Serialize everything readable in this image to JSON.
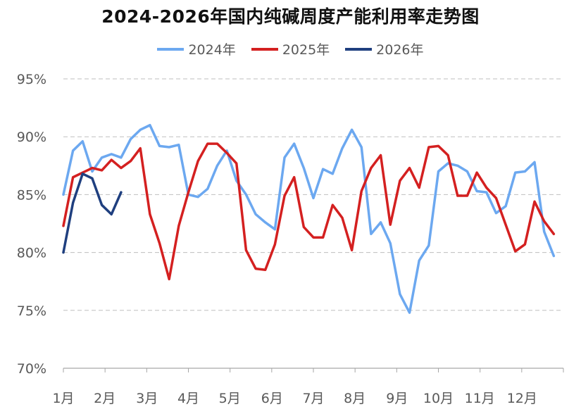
{
  "chart_data": {
    "type": "line",
    "title": "2024-2026年国内纯碱周度产能利用率走势图",
    "xlabel": "",
    "ylabel": "",
    "ylim": [
      70,
      95
    ],
    "y_ticks": [
      "70%",
      "75%",
      "80%",
      "85%",
      "90%",
      "95%"
    ],
    "y_tick_values": [
      70,
      75,
      80,
      85,
      90,
      95
    ],
    "x_ticks": [
      "1月",
      "2月",
      "3月",
      "4月",
      "5月",
      "6月",
      "7月",
      "8月",
      "9月",
      "10月",
      "11月",
      "12月"
    ],
    "x_tick_weeks": [
      0,
      4.3,
      8.7,
      13,
      17.3,
      21.7,
      26,
      30.3,
      34.7,
      39,
      43.3,
      47.7
    ],
    "x_range_weeks": [
      0,
      52
    ],
    "grid": true,
    "legend_position": "top-center",
    "series": [
      {
        "name": "2024年",
        "color": "#6CA8F0",
        "values": [
          85.0,
          88.8,
          89.6,
          87.0,
          88.2,
          88.5,
          88.2,
          89.8,
          90.6,
          91.0,
          89.2,
          89.1,
          89.3,
          85.0,
          84.8,
          85.5,
          87.5,
          88.8,
          86.2,
          85.0,
          83.3,
          82.6,
          82.0,
          88.2,
          89.4,
          87.3,
          84.7,
          87.2,
          86.8,
          89.0,
          90.6,
          89.1,
          81.6,
          82.6,
          80.8,
          76.4,
          74.8,
          79.3,
          80.6,
          87.0,
          87.7,
          87.5,
          87.0,
          85.3,
          85.2,
          83.4,
          84.0,
          86.9,
          87.0,
          87.8,
          81.8,
          79.7
        ]
      },
      {
        "name": "2025年",
        "color": "#D42020",
        "values": [
          82.3,
          86.5,
          86.9,
          87.3,
          87.1,
          88.0,
          87.3,
          87.9,
          89.0,
          83.3,
          80.8,
          77.7,
          82.3,
          85.2,
          87.9,
          89.4,
          89.4,
          88.6,
          87.7,
          80.2,
          78.6,
          78.5,
          80.7,
          84.9,
          86.5,
          82.2,
          81.3,
          81.3,
          84.1,
          83.0,
          80.2,
          85.3,
          87.3,
          88.4,
          82.4,
          86.2,
          87.3,
          85.6,
          89.1,
          89.2,
          88.4,
          84.9,
          84.9,
          86.9,
          85.6,
          84.7,
          82.4,
          80.1,
          80.7,
          84.4,
          82.7,
          81.6
        ]
      },
      {
        "name": "2026年",
        "color": "#1F3F7F",
        "values": [
          80.0,
          84.3,
          86.8,
          86.4,
          84.1,
          83.3,
          85.2
        ]
      }
    ]
  }
}
